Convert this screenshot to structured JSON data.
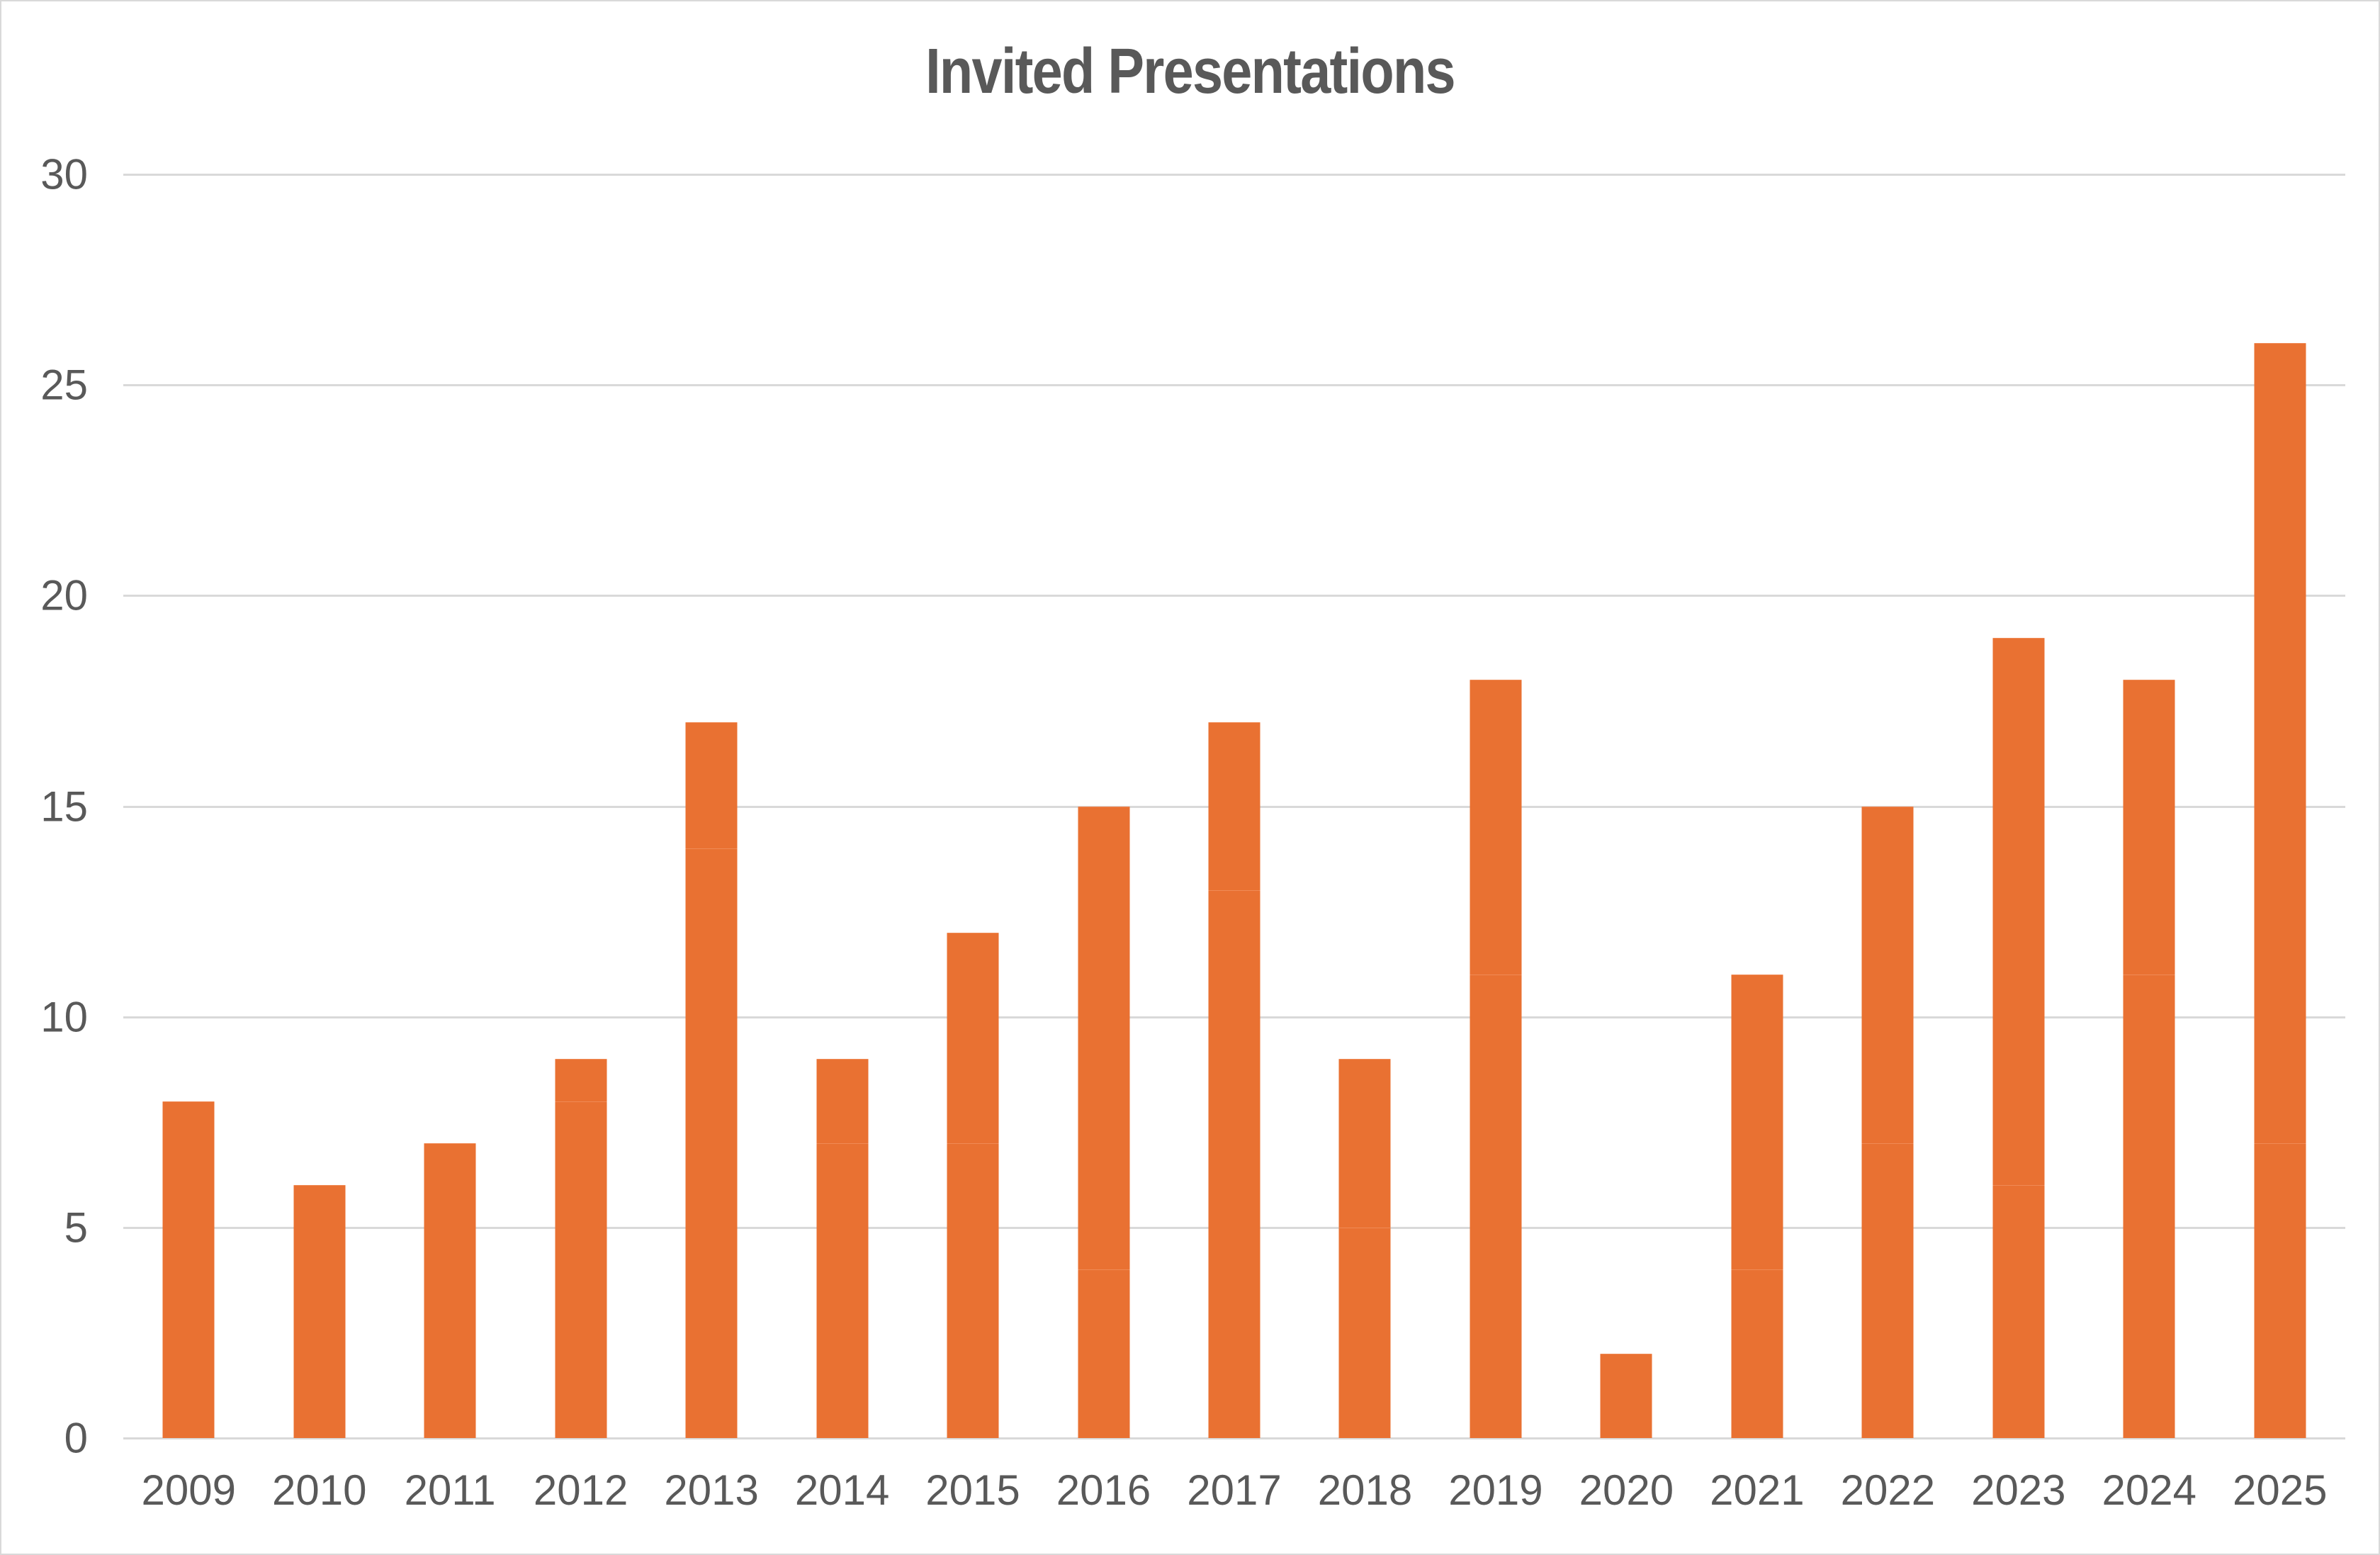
{
  "chart_data": {
    "type": "bar",
    "title": "Invited Presentations",
    "xlabel": "",
    "ylabel": "",
    "categories": [
      "2009",
      "2010",
      "2011",
      "2012",
      "2013",
      "2014",
      "2015",
      "2016",
      "2017",
      "2018",
      "2019",
      "2020",
      "2021",
      "2022",
      "2023",
      "2024",
      "2025"
    ],
    "values": [
      8,
      6,
      7,
      9,
      17,
      9,
      12,
      15,
      17,
      9,
      18,
      2,
      11,
      15,
      19,
      18,
      26
    ],
    "segments": [
      [
        8
      ],
      [
        6
      ],
      [
        7
      ],
      [
        8,
        1
      ],
      [
        14,
        3
      ],
      [
        7,
        2
      ],
      [
        7,
        5
      ],
      [
        4,
        11
      ],
      [
        13,
        4
      ],
      [
        5,
        4
      ],
      [
        11,
        7
      ],
      [
        2
      ],
      [
        4,
        7
      ],
      [
        7,
        8
      ],
      [
        6,
        13
      ],
      [
        11,
        7
      ],
      [
        7,
        19
      ]
    ],
    "ylim": [
      0,
      30
    ],
    "yticks": [
      "0",
      "5",
      "10",
      "15",
      "20",
      "25",
      "30"
    ],
    "grid": true,
    "legend": "none",
    "bar_color": "#e97132",
    "grid_color": "#d9d9d9",
    "text_color": "#595959"
  }
}
